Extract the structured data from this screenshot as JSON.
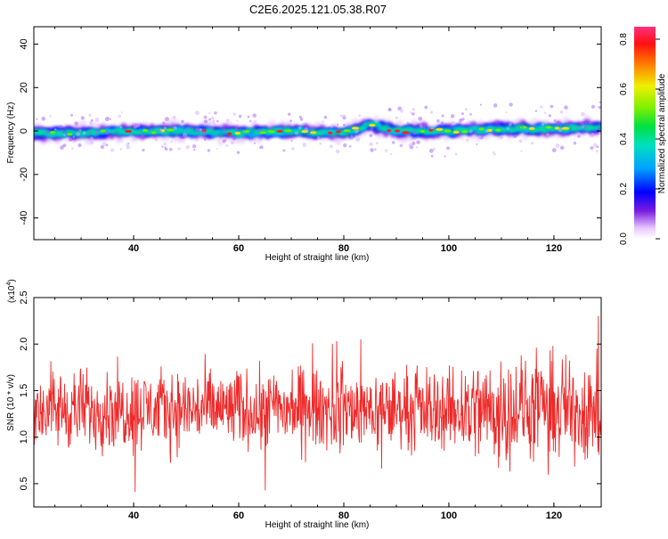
{
  "title": "C2E6.2025.121.05.38.R07",
  "colors": {
    "snr_line": "#ee2a2a",
    "axis": "#000000"
  },
  "chart_data": [
    {
      "type": "heatmap",
      "xlabel": "Height of straight line (km)",
      "ylabel": "Frequency (Hz)",
      "xlim": [
        21,
        129
      ],
      "ylim": [
        -50,
        48
      ],
      "xticks": [
        40,
        60,
        80,
        100,
        120
      ],
      "yticks": [
        -40,
        -20,
        0,
        20,
        40
      ],
      "grid": false,
      "ridge": {
        "description_free_values": true,
        "x": [
          21,
          30,
          40,
          50,
          60,
          70,
          80,
          85,
          90,
          100,
          110,
          120,
          129
        ],
        "freq_center": [
          -1,
          -1,
          0,
          0,
          -1,
          0,
          -1,
          3,
          0,
          0,
          1,
          1,
          2
        ]
      },
      "colorbar": {
        "label": "Normalized spectral amplitude",
        "ticks": [
          "0.0",
          "0.2",
          "0.4",
          "0.6",
          "0.8"
        ],
        "tick_values": [
          0.0,
          0.2,
          0.4,
          0.6,
          0.8
        ],
        "range": [
          0.0,
          0.85
        ]
      }
    },
    {
      "type": "line",
      "xlabel": "Height of straight line (km)",
      "ylabel": "SNR (10 * v/v)",
      "scale_label": "(x10",
      "scale_exp": "4",
      "scale_close": ")",
      "xlim": [
        21,
        129
      ],
      "ylim": [
        0.25,
        2.5
      ],
      "xticks": [
        40,
        60,
        80,
        100,
        120
      ],
      "yticks": [
        "0.5",
        "1.0",
        "1.5",
        "2.0",
        "2.5"
      ],
      "ytick_values": [
        0.5,
        1.0,
        1.5,
        2.0,
        2.5
      ],
      "grid": false,
      "series": [
        {
          "mean": 1.3,
          "points": 1200,
          "min": 0.3,
          "max": 2.5
        }
      ]
    }
  ]
}
